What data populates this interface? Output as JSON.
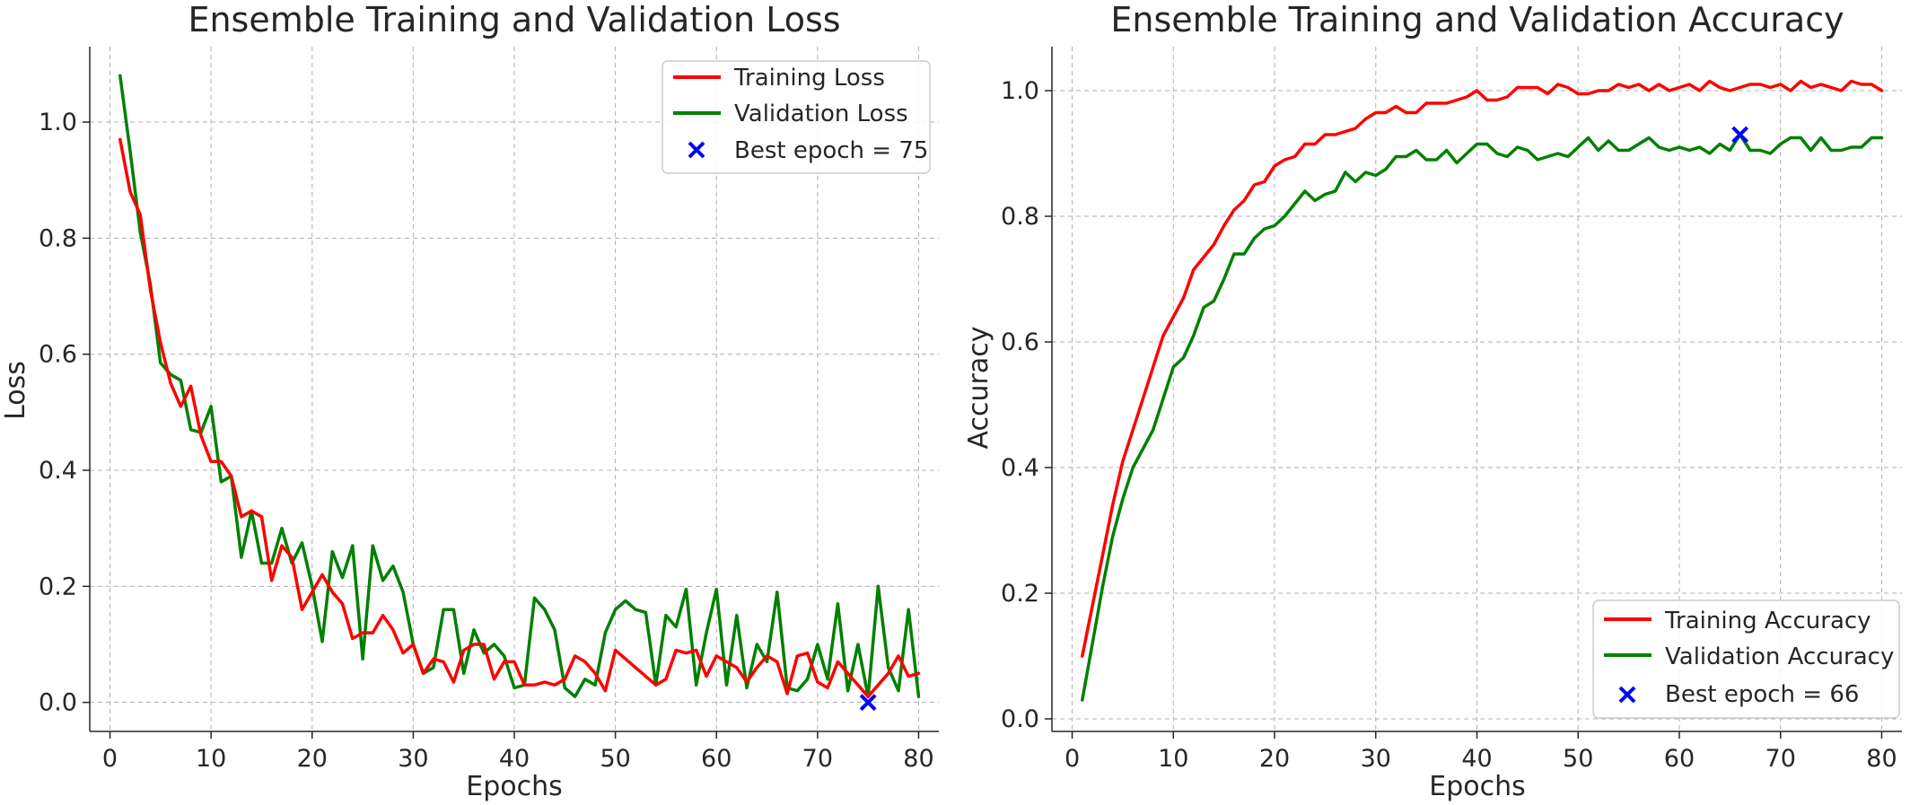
{
  "chart_data": [
    {
      "type": "line",
      "title": "Ensemble Training and Validation Loss",
      "xlabel": "Epochs",
      "ylabel": "Loss",
      "xlim": [
        -2,
        82
      ],
      "ylim": [
        -0.05,
        1.13
      ],
      "grid": true,
      "legend_position": "top-right",
      "x_ticks": [
        0,
        10,
        20,
        30,
        40,
        50,
        60,
        70,
        80
      ],
      "y_ticks": [
        0.0,
        0.2,
        0.4,
        0.6,
        0.8,
        1.0
      ],
      "x_tick_labels": [
        "0",
        "10",
        "20",
        "30",
        "40",
        "50",
        "60",
        "70",
        "80"
      ],
      "y_tick_labels": [
        "0.0",
        "0.2",
        "0.4",
        "0.6",
        "0.8",
        "1.0"
      ],
      "series": [
        {
          "name": "Training Loss",
          "color": "#ff0000",
          "x": [
            1,
            2,
            3,
            4,
            5,
            6,
            7,
            8,
            9,
            10,
            11,
            12,
            13,
            14,
            15,
            16,
            17,
            18,
            19,
            20,
            21,
            22,
            23,
            24,
            25,
            26,
            27,
            28,
            29,
            30,
            31,
            32,
            33,
            34,
            35,
            36,
            37,
            38,
            39,
            40,
            41,
            42,
            43,
            44,
            45,
            46,
            47,
            48,
            49,
            50,
            51,
            52,
            53,
            54,
            55,
            56,
            57,
            58,
            59,
            60,
            61,
            62,
            63,
            64,
            65,
            66,
            67,
            68,
            69,
            70,
            71,
            72,
            73,
            74,
            75,
            76,
            77,
            78,
            79,
            80
          ],
          "values": [
            0.97,
            0.88,
            0.84,
            0.71,
            0.62,
            0.55,
            0.51,
            0.545,
            0.46,
            0.415,
            0.415,
            0.39,
            0.32,
            0.33,
            0.32,
            0.21,
            0.27,
            0.25,
            0.16,
            0.19,
            0.22,
            0.19,
            0.17,
            0.11,
            0.12,
            0.12,
            0.15,
            0.125,
            0.085,
            0.1,
            0.05,
            0.075,
            0.07,
            0.035,
            0.09,
            0.1,
            0.1,
            0.04,
            0.07,
            0.07,
            0.03,
            0.03,
            0.035,
            0.03,
            0.04,
            0.08,
            0.07,
            0.05,
            0.02,
            0.09,
            0.075,
            0.06,
            0.045,
            0.03,
            0.04,
            0.09,
            0.085,
            0.09,
            0.045,
            0.08,
            0.07,
            0.06,
            0.035,
            0.06,
            0.08,
            0.07,
            0.015,
            0.08,
            0.085,
            0.035,
            0.025,
            0.07,
            0.05,
            0.03,
            0.01,
            0.03,
            0.05,
            0.08,
            0.045,
            0.05
          ]
        },
        {
          "name": "Validation Loss",
          "color": "#008000",
          "x": [
            1,
            2,
            3,
            4,
            5,
            6,
            7,
            8,
            9,
            10,
            11,
            12,
            13,
            14,
            15,
            16,
            17,
            18,
            19,
            20,
            21,
            22,
            23,
            24,
            25,
            26,
            27,
            28,
            29,
            30,
            31,
            32,
            33,
            34,
            35,
            36,
            37,
            38,
            39,
            40,
            41,
            42,
            43,
            44,
            45,
            46,
            47,
            48,
            49,
            50,
            51,
            52,
            53,
            54,
            55,
            56,
            57,
            58,
            59,
            60,
            61,
            62,
            63,
            64,
            65,
            66,
            67,
            68,
            69,
            70,
            71,
            72,
            73,
            74,
            75,
            76,
            77,
            78,
            79,
            80
          ],
          "values": [
            1.08,
            0.95,
            0.81,
            0.72,
            0.585,
            0.565,
            0.555,
            0.47,
            0.465,
            0.51,
            0.38,
            0.39,
            0.25,
            0.33,
            0.24,
            0.24,
            0.3,
            0.24,
            0.275,
            0.2,
            0.105,
            0.26,
            0.215,
            0.27,
            0.075,
            0.27,
            0.21,
            0.235,
            0.19,
            0.1,
            0.05,
            0.06,
            0.16,
            0.16,
            0.05,
            0.125,
            0.085,
            0.1,
            0.08,
            0.025,
            0.03,
            0.18,
            0.16,
            0.125,
            0.025,
            0.01,
            0.04,
            0.03,
            0.12,
            0.16,
            0.175,
            0.16,
            0.155,
            0.03,
            0.15,
            0.13,
            0.195,
            0.03,
            0.12,
            0.195,
            0.03,
            0.15,
            0.025,
            0.1,
            0.07,
            0.19,
            0.025,
            0.02,
            0.04,
            0.1,
            0.04,
            0.17,
            0.02,
            0.1,
            0.01,
            0.2,
            0.06,
            0.02,
            0.16,
            0.01
          ]
        }
      ],
      "best_epoch": {
        "label": "Best epoch = 75",
        "x": 75,
        "y": 0.0,
        "color": "#0000ff"
      }
    },
    {
      "type": "line",
      "title": "Ensemble Training and Validation Accuracy",
      "xlabel": "Epochs",
      "ylabel": "Accuracy",
      "xlim": [
        -2,
        82
      ],
      "ylim": [
        -0.02,
        1.07
      ],
      "grid": true,
      "legend_position": "bottom-right",
      "x_ticks": [
        0,
        10,
        20,
        30,
        40,
        50,
        60,
        70,
        80
      ],
      "y_ticks": [
        0.0,
        0.2,
        0.4,
        0.6,
        0.8,
        1.0
      ],
      "x_tick_labels": [
        "0",
        "10",
        "20",
        "30",
        "40",
        "50",
        "60",
        "70",
        "80"
      ],
      "y_tick_labels": [
        "0.0",
        "0.2",
        "0.4",
        "0.6",
        "0.8",
        "1.0"
      ],
      "series": [
        {
          "name": "Training Accuracy",
          "color": "#ff0000",
          "x": [
            1,
            2,
            3,
            4,
            5,
            6,
            7,
            8,
            9,
            10,
            11,
            12,
            13,
            14,
            15,
            16,
            17,
            18,
            19,
            20,
            21,
            22,
            23,
            24,
            25,
            26,
            27,
            28,
            29,
            30,
            31,
            32,
            33,
            34,
            35,
            36,
            37,
            38,
            39,
            40,
            41,
            42,
            43,
            44,
            45,
            46,
            47,
            48,
            49,
            50,
            51,
            52,
            53,
            54,
            55,
            56,
            57,
            58,
            59,
            60,
            61,
            62,
            63,
            64,
            65,
            66,
            67,
            68,
            69,
            70,
            71,
            72,
            73,
            74,
            75,
            76,
            77,
            78,
            79,
            80
          ],
          "values": [
            0.1,
            0.18,
            0.26,
            0.34,
            0.41,
            0.46,
            0.51,
            0.56,
            0.61,
            0.64,
            0.67,
            0.715,
            0.735,
            0.755,
            0.785,
            0.81,
            0.825,
            0.85,
            0.855,
            0.88,
            0.89,
            0.895,
            0.915,
            0.915,
            0.93,
            0.93,
            0.935,
            0.94,
            0.955,
            0.965,
            0.965,
            0.975,
            0.965,
            0.965,
            0.98,
            0.98,
            0.98,
            0.985,
            0.99,
            1.0,
            0.985,
            0.985,
            0.99,
            1.005,
            1.005,
            1.005,
            0.995,
            1.01,
            1.005,
            0.995,
            0.995,
            1.0,
            1.0,
            1.01,
            1.005,
            1.01,
            1.0,
            1.01,
            1.0,
            1.005,
            1.01,
            1.0,
            1.015,
            1.005,
            1.0,
            1.005,
            1.01,
            1.01,
            1.005,
            1.01,
            1.0,
            1.015,
            1.005,
            1.01,
            1.005,
            1.0,
            1.015,
            1.01,
            1.01,
            1.0
          ]
        },
        {
          "name": "Validation Accuracy",
          "color": "#008000",
          "x": [
            1,
            2,
            3,
            4,
            5,
            6,
            7,
            8,
            9,
            10,
            11,
            12,
            13,
            14,
            15,
            16,
            17,
            18,
            19,
            20,
            21,
            22,
            23,
            24,
            25,
            26,
            27,
            28,
            29,
            30,
            31,
            32,
            33,
            34,
            35,
            36,
            37,
            38,
            39,
            40,
            41,
            42,
            43,
            44,
            45,
            46,
            47,
            48,
            49,
            50,
            51,
            52,
            53,
            54,
            55,
            56,
            57,
            58,
            59,
            60,
            61,
            62,
            63,
            64,
            65,
            66,
            67,
            68,
            69,
            70,
            71,
            72,
            73,
            74,
            75,
            76,
            77,
            78,
            79,
            80
          ],
          "values": [
            0.03,
            0.12,
            0.21,
            0.29,
            0.35,
            0.4,
            0.43,
            0.46,
            0.51,
            0.56,
            0.575,
            0.61,
            0.655,
            0.665,
            0.7,
            0.74,
            0.74,
            0.765,
            0.78,
            0.785,
            0.8,
            0.82,
            0.84,
            0.825,
            0.835,
            0.84,
            0.87,
            0.855,
            0.87,
            0.865,
            0.875,
            0.895,
            0.895,
            0.905,
            0.89,
            0.89,
            0.905,
            0.885,
            0.9,
            0.915,
            0.915,
            0.9,
            0.895,
            0.91,
            0.905,
            0.89,
            0.895,
            0.9,
            0.895,
            0.91,
            0.925,
            0.905,
            0.92,
            0.905,
            0.905,
            0.915,
            0.925,
            0.91,
            0.905,
            0.91,
            0.905,
            0.91,
            0.9,
            0.915,
            0.905,
            0.93,
            0.905,
            0.905,
            0.9,
            0.915,
            0.925,
            0.925,
            0.905,
            0.925,
            0.905,
            0.905,
            0.91,
            0.91,
            0.925,
            0.925
          ]
        }
      ],
      "best_epoch": {
        "label": "Best epoch = 66",
        "x": 66,
        "y": 0.93,
        "color": "#0000ff"
      }
    }
  ]
}
